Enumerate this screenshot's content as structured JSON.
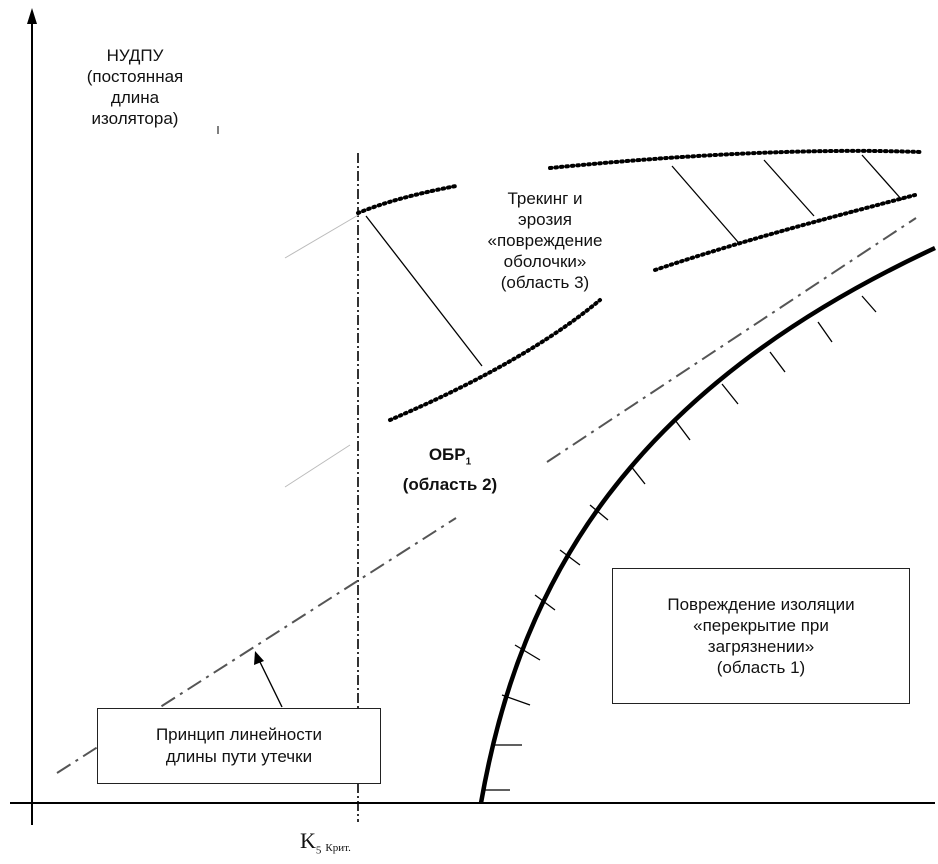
{
  "y_axis_label": [
    "НУДПУ",
    "(постоянная",
    "длина",
    "изолятора)"
  ],
  "x_axis_label": {
    "main": "K",
    "sub": "5",
    "suffix": "Крит."
  },
  "region3_label": [
    "Трекинг и",
    "эрозия",
    "«повреждение",
    "оболочки»",
    "(область 3)"
  ],
  "region2_label": {
    "line1_main": "ОБР",
    "line1_sub": "1",
    "line2": "(область 2)"
  },
  "region1_label": [
    "Повреждение изоляции",
    "«перекрытие при",
    "загрязнении»",
    "(область 1)"
  ],
  "linearity_label": [
    "Принцип линейности",
    "длины пути утечки"
  ]
}
